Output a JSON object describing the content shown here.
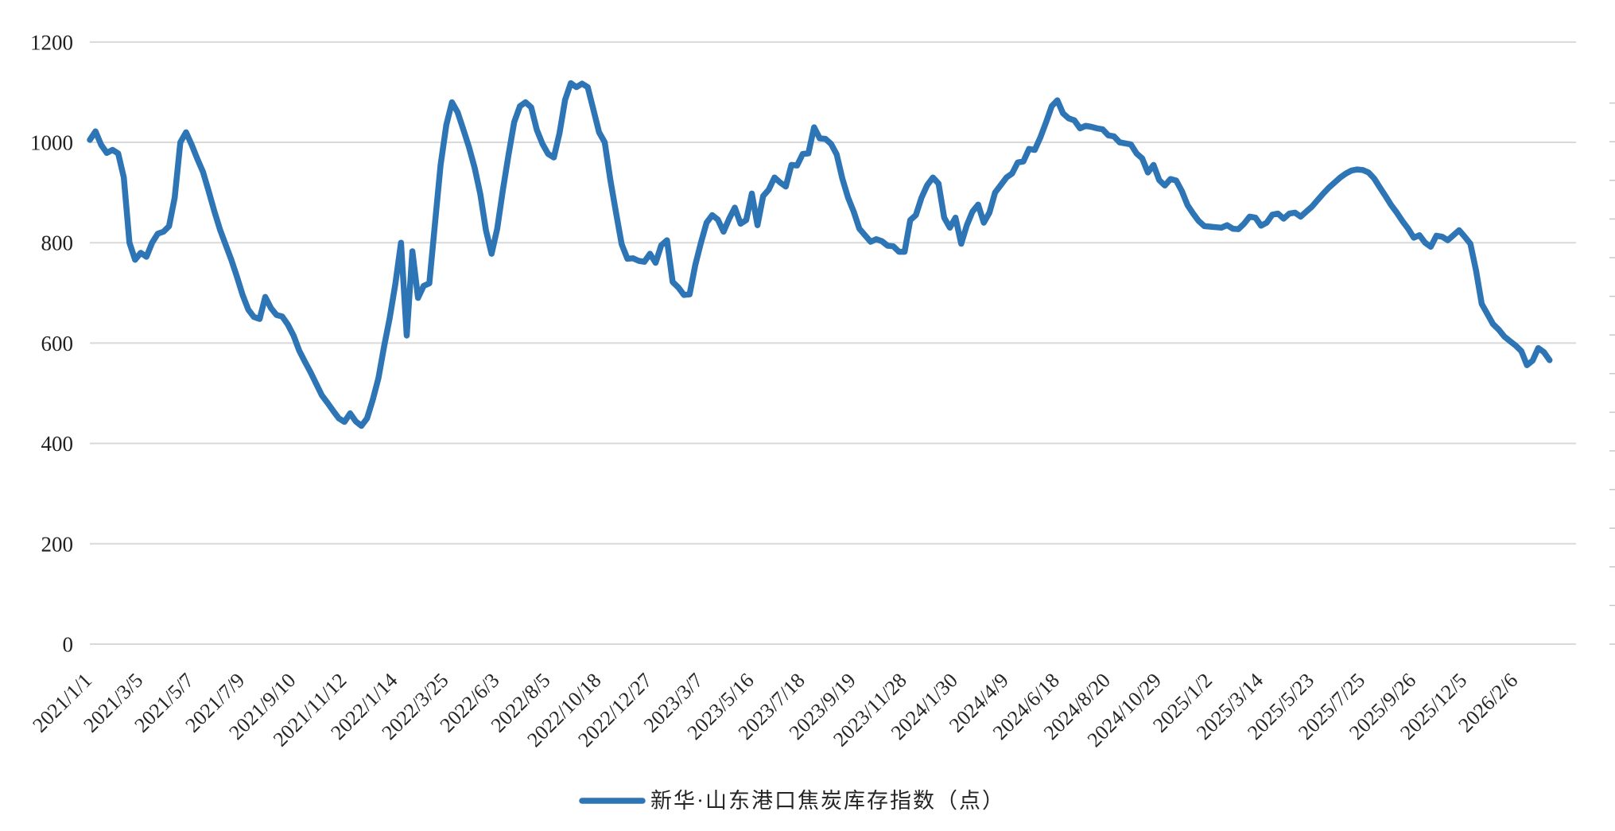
{
  "chart_data": {
    "type": "line",
    "title": "",
    "legend": "新华·山东港口焦炭库存指数（点）",
    "ylabel": "",
    "xlabel": "",
    "ylim": [
      0,
      1200
    ],
    "y_ticks": [
      0,
      200,
      400,
      600,
      800,
      1000,
      1200
    ],
    "grid": "horizontal",
    "legend_position": "bottom-center",
    "line_color": "#2E75B6",
    "gridline_color": "#D9D9D9",
    "edge_tick_color": "#C8C8C8",
    "label_color": "#262626",
    "label_every": 9,
    "x_tick_labels": [
      "2021/1/1",
      "2021/3/5",
      "2021/5/7",
      "2021/7/9",
      "2021/9/10",
      "2021/11/12",
      "2022/1/14",
      "2022/3/25",
      "2022/6/3",
      "2022/8/5",
      "2022/10/18",
      "2022/12/27",
      "2023/3/7",
      "2023/5/16",
      "2023/7/18",
      "2023/9/19",
      "2023/11/28",
      "2024/1/30",
      "2024/4/9",
      "2024/6/18",
      "2024/8/20",
      "2024/10/29",
      "2025/1/2",
      "2025/3/14",
      "2025/5/23",
      "2025/7/25",
      "2025/9/26",
      "2025/12/5",
      "2026/2/6"
    ],
    "series": [
      {
        "name": "新华·山东港口焦炭库存指数（点）",
        "values": [
          1005,
          1022,
          995,
          979,
          985,
          978,
          930,
          800,
          766,
          780,
          772,
          800,
          818,
          822,
          833,
          890,
          1000,
          1020,
          995,
          967,
          941,
          903,
          863,
          826,
          796,
          766,
          732,
          696,
          667,
          652,
          648,
          692,
          670,
          656,
          653,
          637,
          615,
          585,
          563,
          542,
          519,
          496,
          481,
          465,
          450,
          443,
          460,
          444,
          435,
          450,
          487,
          530,
          593,
          650,
          718,
          800,
          615,
          783,
          690,
          714,
          719,
          838,
          955,
          1035,
          1080,
          1060,
          1026,
          991,
          950,
          897,
          825,
          778,
          828,
          905,
          975,
          1040,
          1072,
          1080,
          1070,
          1025,
          997,
          977,
          970,
          1018,
          1085,
          1118,
          1110,
          1117,
          1110,
          1065,
          1020,
          1000,
          925,
          860,
          797,
          768,
          769,
          764,
          762,
          778,
          760,
          795,
          805,
          722,
          711,
          696,
          697,
          755,
          800,
          840,
          855,
          846,
          822,
          848,
          870,
          838,
          845,
          898,
          835,
          893,
          906,
          930,
          920,
          912,
          955,
          954,
          977,
          978,
          1030,
          1008,
          1007,
          997,
          976,
          928,
          890,
          862,
          828,
          815,
          802,
          807,
          803,
          794,
          793,
          782,
          782,
          845,
          855,
          890,
          915,
          930,
          918,
          850,
          830,
          850,
          798,
          835,
          862,
          876,
          840,
          860,
          900,
          915,
          930,
          938,
          960,
          962,
          987,
          985,
          1010,
          1040,
          1072,
          1084,
          1058,
          1048,
          1044,
          1028,
          1033,
          1031,
          1028,
          1026,
          1014,
          1012,
          1000,
          998,
          996,
          978,
          968,
          940,
          955,
          925,
          914,
          927,
          924,
          903,
          875,
          858,
          843,
          833,
          832,
          831,
          830,
          835,
          828,
          827,
          838,
          852,
          850,
          834,
          840,
          856,
          858,
          848,
          858,
          860,
          852,
          862,
          872,
          885,
          898,
          910,
          920,
          930,
          938,
          944,
          946,
          945,
          940,
          928,
          910,
          893,
          875,
          860,
          843,
          828,
          810,
          815,
          800,
          792,
          814,
          812,
          805,
          815,
          825,
          812,
          798,
          745,
          678,
          658,
          638,
          627,
          613,
          604,
          595,
          584,
          556,
          565,
          590,
          582,
          566
        ]
      }
    ]
  }
}
